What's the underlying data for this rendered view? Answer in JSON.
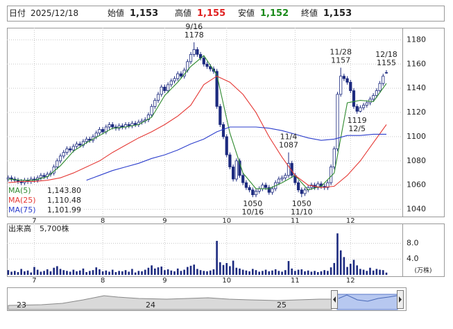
{
  "header": {
    "date_label": "日付",
    "date": "2025/12/18",
    "items": [
      {
        "label": "始値",
        "value": "1,153",
        "color": "#222222"
      },
      {
        "label": "高値",
        "value": "1,155",
        "color": "#e02020"
      },
      {
        "label": "安値",
        "value": "1,152",
        "color": "#1a8a1a"
      },
      {
        "label": "終値",
        "value": "1,153",
        "color": "#222222"
      }
    ]
  },
  "chart_data": [
    {
      "type": "candlestick",
      "open": [
        1065,
        1066,
        1065,
        1064,
        1063,
        1062,
        1064,
        1063,
        1065,
        1064,
        1066,
        1068,
        1067,
        1069,
        1070,
        1075,
        1080,
        1084,
        1087,
        1090,
        1089,
        1092,
        1094,
        1093,
        1096,
        1098,
        1097,
        1100,
        1103,
        1106,
        1104,
        1108,
        1110,
        1108,
        1107,
        1109,
        1108,
        1110,
        1109,
        1111,
        1110,
        1112,
        1113,
        1114,
        1118,
        1125,
        1130,
        1135,
        1141,
        1138,
        1143,
        1146,
        1148,
        1152,
        1150,
        1155,
        1162,
        1168,
        1172,
        1168,
        1165,
        1160,
        1158,
        1156,
        1154,
        1125,
        1110,
        1100,
        1085,
        1075,
        1065,
        1080,
        1068,
        1062,
        1058,
        1056,
        1052,
        1055,
        1057,
        1060,
        1058,
        1054,
        1057,
        1062,
        1065,
        1066,
        1068,
        1078,
        1068,
        1062,
        1056,
        1053,
        1056,
        1058,
        1060,
        1058,
        1061,
        1059,
        1058,
        1062,
        1075,
        1090,
        1135,
        1150,
        1148,
        1145,
        1138,
        1125,
        1121,
        1124,
        1126,
        1128,
        1131,
        1134,
        1138,
        1144,
        1153
      ],
      "high": [
        1068,
        1068,
        1067,
        1066,
        1065,
        1066,
        1066,
        1067,
        1067,
        1068,
        1070,
        1070,
        1071,
        1072,
        1077,
        1082,
        1086,
        1089,
        1092,
        1092,
        1094,
        1096,
        1096,
        1098,
        1100,
        1100,
        1102,
        1105,
        1108,
        1108,
        1110,
        1112,
        1112,
        1110,
        1111,
        1111,
        1112,
        1112,
        1113,
        1113,
        1114,
        1115,
        1116,
        1120,
        1127,
        1132,
        1137,
        1143,
        1143,
        1145,
        1148,
        1150,
        1154,
        1154,
        1157,
        1164,
        1170,
        1178,
        1174,
        1170,
        1167,
        1162,
        1160,
        1158,
        1156,
        1127,
        1112,
        1102,
        1087,
        1077,
        1082,
        1082,
        1070,
        1064,
        1060,
        1058,
        1057,
        1059,
        1062,
        1062,
        1060,
        1059,
        1064,
        1067,
        1068,
        1070,
        1087,
        1080,
        1070,
        1064,
        1058,
        1058,
        1060,
        1062,
        1062,
        1063,
        1063,
        1061,
        1064,
        1077,
        1092,
        1137,
        1157,
        1152,
        1150,
        1147,
        1140,
        1127,
        1126,
        1128,
        1130,
        1133,
        1136,
        1140,
        1146,
        1152,
        1155
      ],
      "low": [
        1063,
        1063,
        1062,
        1061,
        1060,
        1060,
        1061,
        1061,
        1062,
        1062,
        1064,
        1065,
        1065,
        1067,
        1068,
        1073,
        1078,
        1082,
        1085,
        1087,
        1087,
        1090,
        1091,
        1091,
        1094,
        1095,
        1095,
        1098,
        1101,
        1102,
        1102,
        1106,
        1106,
        1105,
        1105,
        1106,
        1106,
        1107,
        1107,
        1108,
        1108,
        1110,
        1111,
        1112,
        1116,
        1123,
        1128,
        1133,
        1136,
        1136,
        1141,
        1144,
        1146,
        1148,
        1148,
        1153,
        1160,
        1166,
        1166,
        1163,
        1158,
        1156,
        1154,
        1152,
        1123,
        1108,
        1098,
        1083,
        1073,
        1063,
        1063,
        1066,
        1060,
        1056,
        1054,
        1050,
        1050,
        1053,
        1055,
        1056,
        1052,
        1052,
        1055,
        1060,
        1063,
        1064,
        1066,
        1066,
        1060,
        1054,
        1050,
        1051,
        1054,
        1056,
        1056,
        1056,
        1057,
        1056,
        1056,
        1060,
        1073,
        1088,
        1133,
        1146,
        1143,
        1136,
        1123,
        1119,
        1120,
        1122,
        1124,
        1126,
        1129,
        1132,
        1136,
        1142,
        1152
      ],
      "close": [
        1066,
        1065,
        1064,
        1063,
        1062,
        1064,
        1063,
        1065,
        1064,
        1066,
        1068,
        1067,
        1069,
        1070,
        1075,
        1080,
        1084,
        1087,
        1090,
        1089,
        1092,
        1094,
        1093,
        1096,
        1098,
        1097,
        1100,
        1103,
        1106,
        1104,
        1108,
        1110,
        1108,
        1107,
        1109,
        1108,
        1110,
        1109,
        1111,
        1110,
        1112,
        1113,
        1114,
        1118,
        1125,
        1130,
        1135,
        1141,
        1138,
        1143,
        1146,
        1148,
        1152,
        1150,
        1155,
        1162,
        1168,
        1172,
        1168,
        1165,
        1160,
        1158,
        1156,
        1154,
        1125,
        1110,
        1100,
        1085,
        1075,
        1065,
        1080,
        1068,
        1062,
        1058,
        1056,
        1052,
        1055,
        1057,
        1060,
        1058,
        1054,
        1057,
        1062,
        1065,
        1066,
        1068,
        1078,
        1068,
        1062,
        1056,
        1053,
        1056,
        1058,
        1060,
        1058,
        1061,
        1059,
        1058,
        1062,
        1075,
        1090,
        1135,
        1150,
        1148,
        1145,
        1138,
        1125,
        1121,
        1124,
        1126,
        1128,
        1131,
        1134,
        1138,
        1144,
        1150,
        1153
      ],
      "up_color": "#ffffff",
      "down_color": "#1c2a7f",
      "line_color": "#1c2a7f",
      "series": [
        {
          "name": "MA(5)",
          "color": "#2f8a2f",
          "last_value": 1143.8,
          "last_value_label": "1,143.80",
          "x": [
            0,
            4,
            8,
            12,
            16,
            20,
            24,
            28,
            32,
            36,
            40,
            44,
            48,
            52,
            56,
            60,
            64,
            68,
            72,
            76,
            80,
            84,
            88,
            92,
            96,
            100,
            104,
            108,
            112,
            116
          ],
          "values": [
            1065,
            1064,
            1064,
            1067,
            1076,
            1088,
            1095,
            1101,
            1107,
            1108,
            1110,
            1116,
            1134,
            1145,
            1158,
            1167,
            1151,
            1103,
            1070,
            1057,
            1057,
            1062,
            1068,
            1056,
            1059,
            1070,
            1128,
            1130,
            1129,
            1144
          ]
        },
        {
          "name": "MA(25)",
          "color": "#e53935",
          "last_value": 1110.48,
          "last_value_label": "1,110.48",
          "x": [
            0,
            4,
            8,
            12,
            16,
            20,
            24,
            28,
            32,
            36,
            40,
            44,
            48,
            52,
            56,
            60,
            64,
            68,
            72,
            76,
            80,
            84,
            88,
            92,
            96,
            100,
            104,
            108,
            112,
            116
          ],
          "values": [
            1062,
            1063,
            1063,
            1064,
            1066,
            1070,
            1075,
            1080,
            1087,
            1093,
            1099,
            1104,
            1110,
            1117,
            1126,
            1143,
            1150,
            1145,
            1135,
            1120,
            1100,
            1083,
            1068,
            1060,
            1058,
            1059,
            1068,
            1080,
            1095,
            1110
          ]
        },
        {
          "name": "MA(75)",
          "color": "#2b3dcc",
          "last_value": 1101.99,
          "last_value_label": "1,101.99",
          "x": [
            0,
            4,
            8,
            12,
            16,
            20,
            24,
            28,
            32,
            36,
            40,
            44,
            48,
            52,
            56,
            60,
            64,
            68,
            72,
            76,
            80,
            84,
            88,
            92,
            96,
            100,
            104,
            108,
            112,
            116
          ],
          "values": [
            null,
            null,
            null,
            null,
            null,
            null,
            1064,
            1068,
            1072,
            1075,
            1078,
            1082,
            1085,
            1089,
            1094,
            1098,
            1104,
            1108,
            1108,
            1108,
            1107,
            1105,
            1102,
            1099,
            1097,
            1098,
            1101,
            1101,
            1102,
            1102
          ]
        }
      ],
      "annotations": [
        {
          "date": "9/16",
          "value": 1178,
          "index": 57,
          "kind": "high"
        },
        {
          "date": "10/16",
          "value": 1050,
          "index": 75,
          "kind": "low"
        },
        {
          "date": "11/4",
          "value": 1087,
          "index": 86,
          "kind": "high"
        },
        {
          "date": "11/10",
          "value": 1050,
          "index": 90,
          "kind": "low"
        },
        {
          "date": "11/28",
          "value": 1157,
          "index": 102,
          "kind": "high"
        },
        {
          "date": "12/5",
          "value": 1119,
          "index": 107,
          "kind": "low"
        },
        {
          "date": "12/18",
          "value": 1155,
          "index": 116,
          "kind": "high"
        }
      ],
      "xlim": [
        -0.4,
        120.9
      ],
      "xticks": [
        {
          "value": 8,
          "label": "7"
        },
        {
          "value": 29,
          "label": "8"
        },
        {
          "value": 48,
          "label": "9"
        },
        {
          "value": 67,
          "label": "10"
        },
        {
          "value": 88,
          "label": "11"
        },
        {
          "value": 105,
          "label": "12"
        }
      ],
      "ylim": [
        1034,
        1190
      ],
      "yticks": [
        1040,
        1060,
        1080,
        1100,
        1120,
        1140,
        1160,
        1180
      ],
      "grid": true
    },
    {
      "type": "bar",
      "title": "出来高",
      "last_label": "5,700株",
      "unit": "(万株)",
      "color": "#1c2a7f",
      "values": [
        1.2,
        0.8,
        1.0,
        0.7,
        1.5,
        0.9,
        1.1,
        0.6,
        2.0,
        1.3,
        0.8,
        1.0,
        1.4,
        0.9,
        1.8,
        2.2,
        1.5,
        1.2,
        1.0,
        0.8,
        1.3,
        0.9,
        1.1,
        1.6,
        0.7,
        1.0,
        1.2,
        1.9,
        1.4,
        0.9,
        1.1,
        0.8,
        1.3,
        0.7,
        1.0,
        0.9,
        1.2,
        0.8,
        1.5,
        0.6,
        1.0,
        0.9,
        1.3,
        1.8,
        2.4,
        1.6,
        1.9,
        2.1,
        1.2,
        1.4,
        1.1,
        0.9,
        1.6,
        1.0,
        1.3,
        2.0,
        2.3,
        2.6,
        1.5,
        1.2,
        1.0,
        0.9,
        1.1,
        1.4,
        8.6,
        3.2,
        2.5,
        3.0,
        2.2,
        3.6,
        1.8,
        1.6,
        1.3,
        1.1,
        0.9,
        1.5,
        1.2,
        0.8,
        1.0,
        1.3,
        0.9,
        1.1,
        1.4,
        1.0,
        0.8,
        1.2,
        3.5,
        1.6,
        1.0,
        1.3,
        1.4,
        0.9,
        1.1,
        0.8,
        1.0,
        0.7,
        0.9,
        1.2,
        1.0,
        1.9,
        3.0,
        10.5,
        6.2,
        4.5,
        2.0,
        2.8,
        3.8,
        2.4,
        1.5,
        1.3,
        1.0,
        1.8,
        1.1,
        1.5,
        1.3,
        1.2,
        0.57
      ],
      "xlim": [
        -0.4,
        120.9
      ],
      "xticks": [
        {
          "value": 8,
          "label": "7"
        },
        {
          "value": 29,
          "label": "8"
        },
        {
          "value": 48,
          "label": "9"
        },
        {
          "value": 67,
          "label": "10"
        },
        {
          "value": 88,
          "label": "11"
        },
        {
          "value": 105,
          "label": "12"
        }
      ],
      "ylim": [
        0,
        13
      ],
      "yticks": [
        {
          "value": 4,
          "label": "4.0"
        },
        {
          "value": 8,
          "label": "8.0"
        }
      ],
      "grid": true
    }
  ],
  "navigator": {
    "labels": [
      "23",
      "24",
      "25"
    ]
  }
}
